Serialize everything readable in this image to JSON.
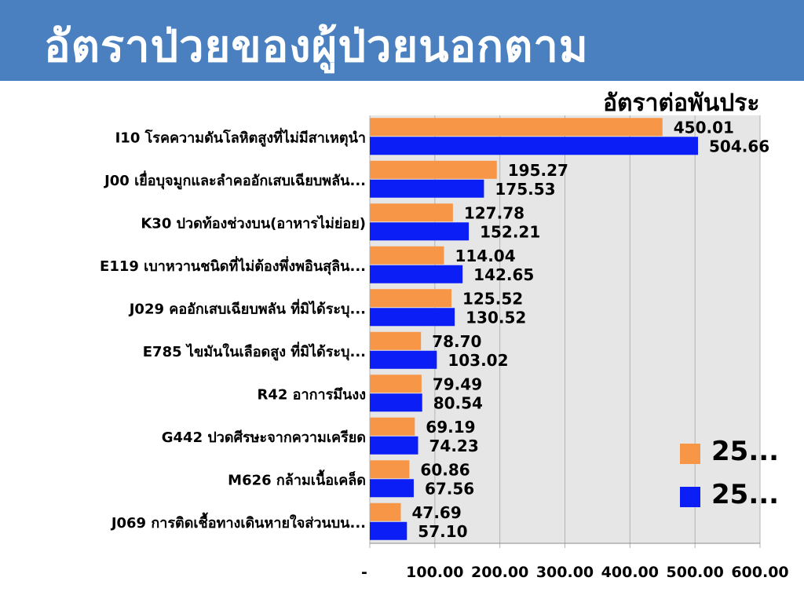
{
  "title": "อัตราป่วยของผู้ป่วยนอกตาม",
  "unit_label": "อัตราต่อพันประ",
  "colors": {
    "title_bg": "#4a7fc0",
    "series_1": "#f79646",
    "series_2": "#0a1ef5",
    "plot_bg": "#e6e6e6"
  },
  "chart_data": {
    "type": "bar",
    "orientation": "horizontal",
    "categories": [
      "I10 โรคความดันโลหิตสูงที่ไม่มีสาเหตุนำ",
      "J00 เยื่อบุจมูกและลำคออักเสบเฉียบพลัน...",
      "K30 ปวดท้องช่วงบน(อาหารไม่ย่อย)",
      "E119 เบาหวานชนิดที่ไม่ต้องพึ่งพอินสุลิน...",
      "J029 คออักเสบเฉียบพลัน ที่มิได้ระบุ...",
      "E785 ไขมันในเลือดสูง ที่มิได้ระบุ...",
      "R42 อาการมึนงง",
      "G442 ปวดศีรษะจากความเครียด",
      "M626 กล้ามเนื้อเคล็ด",
      "J069 การติดเชื้อทางเดินหายใจส่วนบน..."
    ],
    "series": [
      {
        "name": "25...",
        "values": [
          450.01,
          195.27,
          127.78,
          114.04,
          125.52,
          78.7,
          79.49,
          69.19,
          60.86,
          47.69
        ]
      },
      {
        "name": "25...",
        "values": [
          504.66,
          175.53,
          152.21,
          142.65,
          130.52,
          103.02,
          80.54,
          74.23,
          67.56,
          57.1
        ]
      }
    ],
    "data_labels": [
      [
        "450.01",
        "195.27",
        "127.78",
        "114.04",
        "125.52",
        "78.70",
        "79.49",
        "69.19",
        "60.86",
        "47.69"
      ],
      [
        "504.66",
        "175.53",
        "152.21",
        "142.65",
        "130.52",
        "103.02",
        "80.54",
        "74.23",
        "67.56",
        "57.10"
      ]
    ],
    "x_ticks": [
      0,
      100,
      200,
      300,
      400,
      500,
      600
    ],
    "x_tick_labels": [
      "-",
      "100.00",
      "200.00",
      "300.00",
      "400.00",
      "500.00",
      "600.00"
    ],
    "xlim": [
      0,
      600
    ],
    "grid": true,
    "legend_position": "right"
  }
}
